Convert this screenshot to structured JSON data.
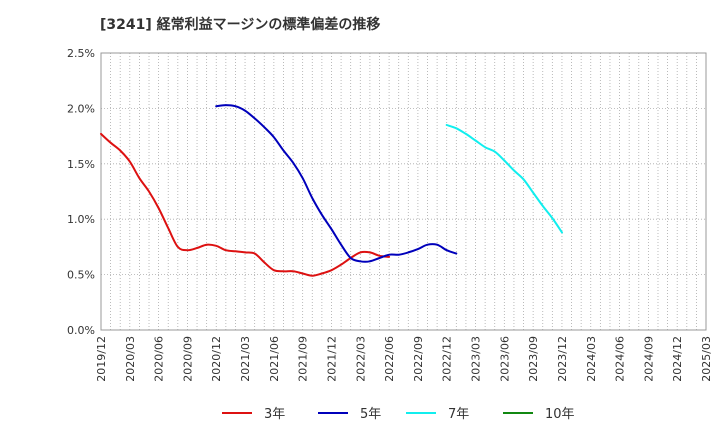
{
  "chart_data": {
    "type": "line",
    "title": "[3241]  経常利益マージンの標準偏差の推移",
    "xlabel": "",
    "ylabel": "",
    "ylim": [
      0,
      2.5
    ],
    "y_ticks": [
      "0.0%",
      "0.5%",
      "1.0%",
      "1.5%",
      "2.0%",
      "2.5%"
    ],
    "y_tick_values": [
      0,
      0.5,
      1.0,
      1.5,
      2.0,
      2.5
    ],
    "x_ticks": [
      "2019/12",
      "2020/03",
      "2020/06",
      "2020/09",
      "2020/12",
      "2021/03",
      "2021/06",
      "2021/09",
      "2021/12",
      "2022/03",
      "2022/06",
      "2022/09",
      "2022/12",
      "2023/03",
      "2023/06",
      "2023/09",
      "2023/12",
      "2024/03",
      "2024/06",
      "2024/09",
      "2024/12",
      "2025/03"
    ],
    "grid": true,
    "legend_position": "bottom",
    "series": [
      {
        "name": "3年",
        "color": "#dd1111",
        "start_index": 0,
        "values": [
          1.77,
          1.69,
          1.62,
          1.52,
          1.37,
          1.25,
          1.1,
          0.92,
          0.75,
          0.72,
          0.74,
          0.77,
          0.76,
          0.72,
          0.71,
          0.7,
          0.69,
          0.61,
          0.54,
          0.53,
          0.53,
          0.51,
          0.49,
          0.51,
          0.54,
          0.59,
          0.65,
          0.7,
          0.7,
          0.67,
          0.66
        ]
      },
      {
        "name": "5年",
        "color": "#0000bb",
        "start_index": 12,
        "values": [
          2.02,
          2.03,
          2.02,
          1.98,
          1.91,
          1.83,
          1.74,
          1.62,
          1.51,
          1.37,
          1.19,
          1.04,
          0.91,
          0.77,
          0.65,
          0.62,
          0.62,
          0.65,
          0.68,
          0.68,
          0.7,
          0.73,
          0.77,
          0.77,
          0.72,
          0.69
        ]
      },
      {
        "name": "7年",
        "color": "#11eeee",
        "start_index": 36,
        "values": [
          1.85,
          1.82,
          1.77,
          1.71,
          1.65,
          1.61,
          1.53,
          1.44,
          1.36,
          1.24,
          1.12,
          1.01,
          0.88
        ]
      },
      {
        "name": "10年",
        "color": "#118811",
        "start_index": 0,
        "values": []
      }
    ]
  }
}
